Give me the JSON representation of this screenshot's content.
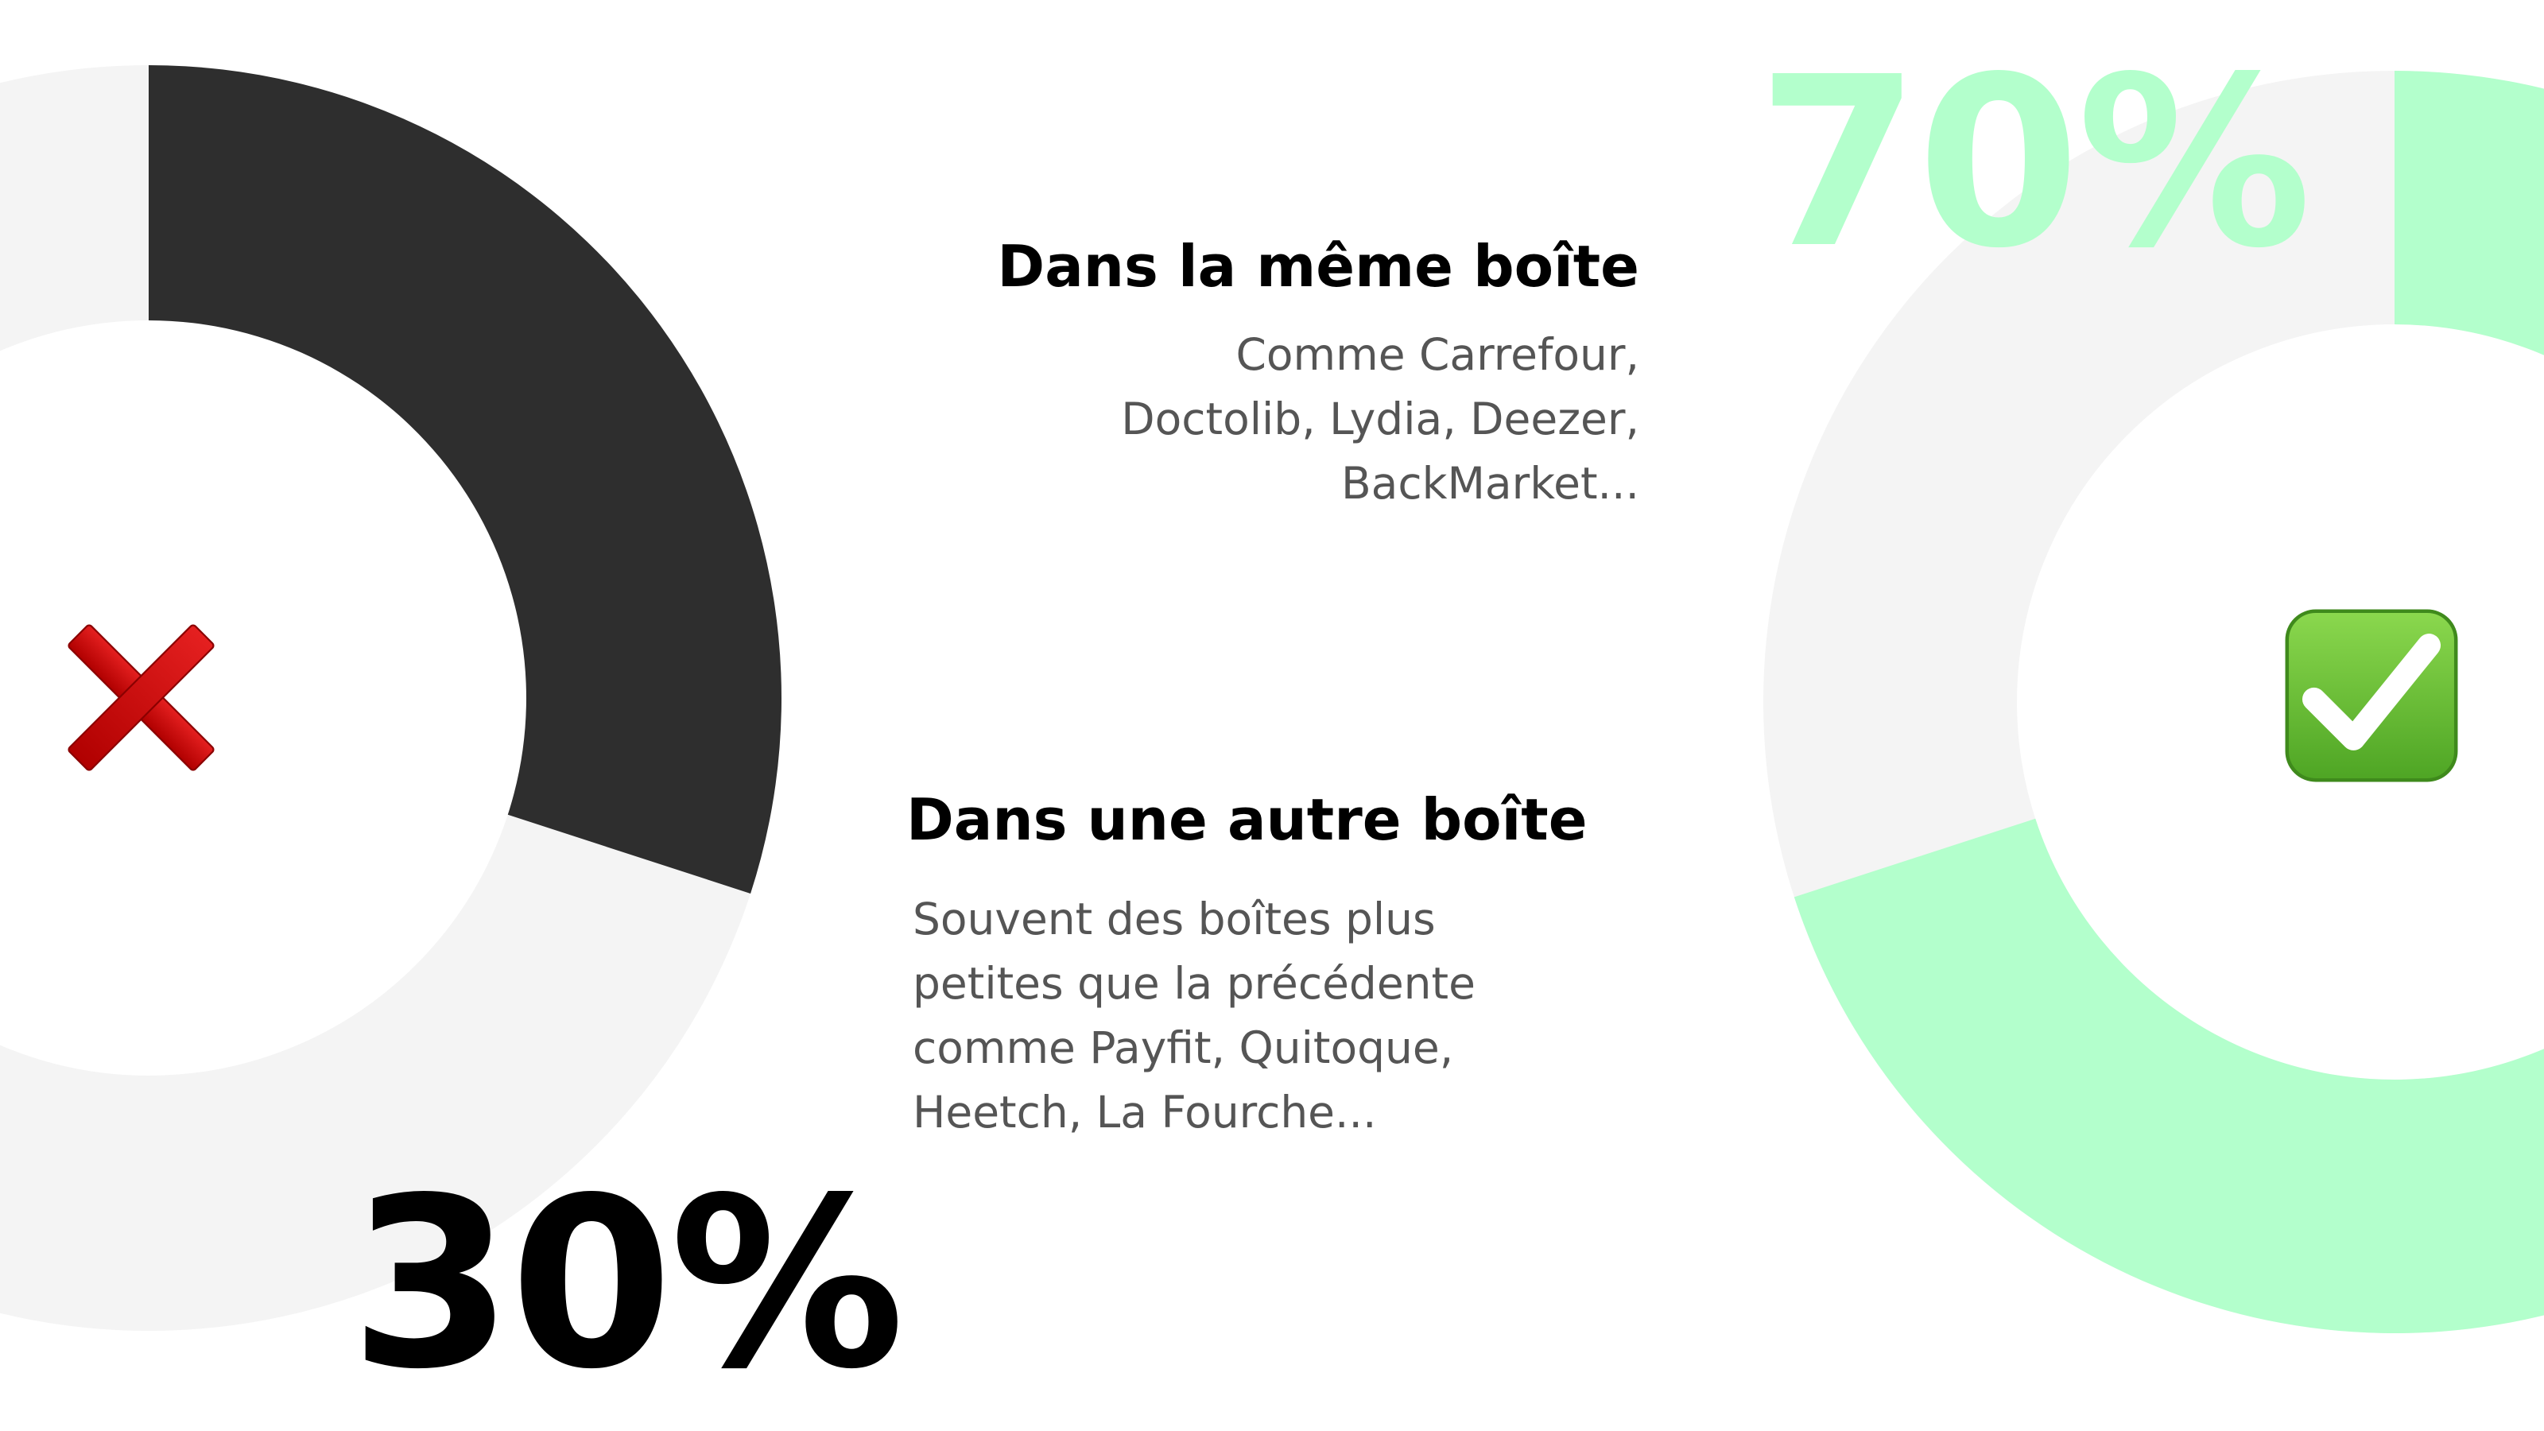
{
  "chart_data": {
    "type": "pie",
    "variant": "donut-pair",
    "slices": [
      {
        "label": "Dans une autre boîte",
        "value": 30,
        "display": "30%",
        "color": "#2e2e2e"
      },
      {
        "label": "Dans la même boîte",
        "value": 70,
        "display": "70%",
        "color": "#b3ffcc"
      }
    ],
    "track_color": "#f4f4f4",
    "unit": "%"
  },
  "labels": {
    "same_company": {
      "title": "Dans la même boîte",
      "lines": [
        "Comme Carrefour,",
        "Doctolib, Lydia, Deezer,",
        "BackMarket..."
      ]
    },
    "other_company": {
      "title": "Dans une autre boîte",
      "lines": [
        "Souvent des boîtes plus",
        "petites que la précédente",
        "comme Payfit, Quitoque,",
        "Heetch, La Fourche..."
      ]
    }
  },
  "icons": {
    "left": "cross-mark-icon",
    "right": "check-mark-icon",
    "cross_color": "#cc0000",
    "check_color": "#6cc33a"
  }
}
